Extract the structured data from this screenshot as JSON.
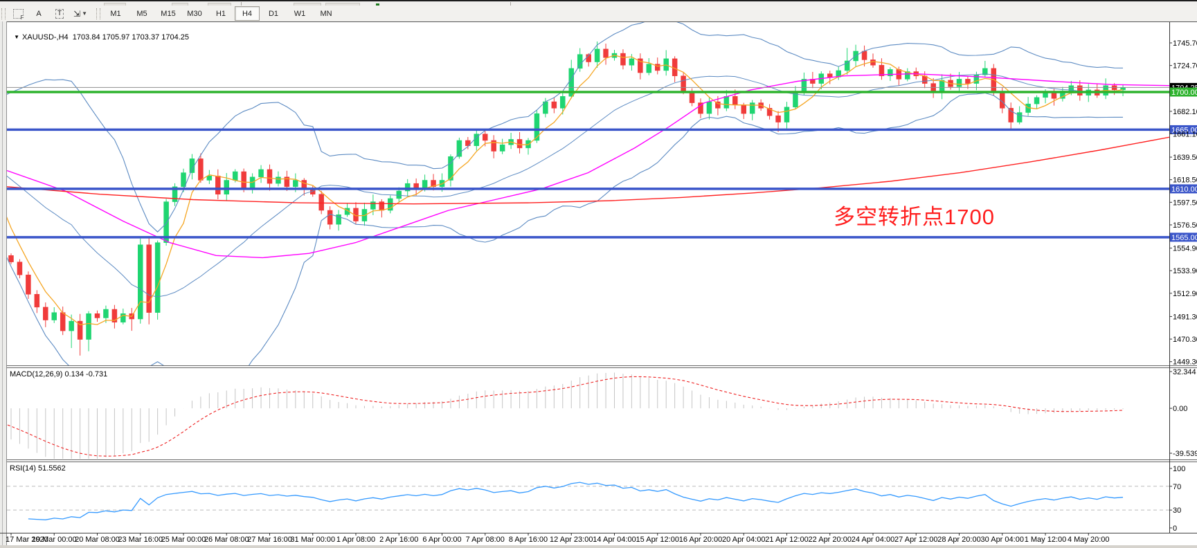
{
  "toolbar": {
    "icons": [
      {
        "name": "chart-shift-f-icon"
      },
      {
        "name": "text-a-icon",
        "glyph": "A"
      },
      {
        "name": "text-box-icon",
        "glyph": "T"
      },
      {
        "name": "cursor-arrows-icon",
        "glyph": "⇲"
      },
      {
        "name": "dropdown-caret",
        "glyph": "▼"
      }
    ],
    "timeframes": [
      "M1",
      "M5",
      "M15",
      "M30",
      "H1",
      "H4",
      "D1",
      "W1",
      "MN"
    ],
    "active_timeframe": "H4"
  },
  "chart_header": {
    "dropdown_marker": "▼",
    "symbol": "XAUUSD-,H4",
    "ohlc": "1703.84 1705.97 1703.37 1704.25"
  },
  "annotation": {
    "text": "多空转折点1700",
    "color": "#ff1e1e"
  },
  "macd_panel": {
    "title": "MACD(12,26,9) 0.134 -0.731",
    "ticks": [
      "32.344",
      "0.00",
      "-39.539"
    ]
  },
  "rsi_panel": {
    "title": "RSI(14) 51.5562",
    "ticks": [
      "100",
      "70",
      "30",
      "0"
    ],
    "dashed_levels": [
      70,
      30
    ]
  },
  "price_axis": {
    "ticks": [
      "1745.70",
      "1724.70",
      "1682.10",
      "1661.10",
      "1639.50",
      "1618.50",
      "1597.50",
      "1576.50",
      "1554.90",
      "1533.90",
      "1512.90",
      "1491.30",
      "1470.30",
      "1449.30"
    ],
    "current_price": {
      "value": 1704.25,
      "label": "1704.25",
      "line_color": "#8f8f8f",
      "label_bg": "#000000"
    },
    "levels": [
      {
        "price": 1700.0,
        "label": "1700.00",
        "color": "#2eb32e"
      },
      {
        "price": 1665.0,
        "label": "1665.00",
        "color": "#3a55c9"
      },
      {
        "price": 1610.0,
        "label": "1610.00",
        "color": "#3a55c9"
      },
      {
        "price": 1565.0,
        "label": "1565.00",
        "color": "#3a55c9"
      }
    ]
  },
  "chart_data": {
    "type": "candlestick",
    "symbol": "XAUUSD",
    "timeframe": "H4",
    "title": "XAUUSD-,H4",
    "ohlc_display": {
      "open": 1703.84,
      "high": 1705.97,
      "low": 1703.37,
      "close": 1704.25
    },
    "ylim": [
      1445.9,
      1765.0
    ],
    "x_labels": [
      "17 Mar 2020",
      "19 Mar 00:00",
      "20 Mar 08:00",
      "23 Mar 16:00",
      "25 Mar 00:00",
      "26 Mar 08:00",
      "27 Mar 16:00",
      "31 Mar 00:00",
      "1 Apr 08:00",
      "2 Apr 16:00",
      "6 Apr 00:00",
      "7 Apr 08:00",
      "8 Apr 16:00",
      "12 Apr 23:00",
      "14 Apr 04:00",
      "15 Apr 12:00",
      "16 Apr 20:00",
      "20 Apr 04:00",
      "21 Apr 12:00",
      "22 Apr 20:00",
      "24 Apr 04:00",
      "27 Apr 12:00",
      "28 Apr 20:00",
      "30 Apr 04:00",
      "1 May 12:00",
      "4 May 20:00"
    ],
    "candles_per_label": 5,
    "first_open": 1548,
    "pre_closes": [
      1673,
      1660,
      1648,
      1635,
      1620,
      1645,
      1655,
      1640,
      1610,
      1590,
      1570,
      1556
    ],
    "closes": [
      1542,
      1530,
      1512,
      1500,
      1488,
      1495,
      1478,
      1487,
      1470,
      1494,
      1490,
      1498,
      1486,
      1494,
      1489,
      1558,
      1495,
      1560,
      1598,
      1612,
      1625,
      1638,
      1618,
      1622,
      1605,
      1618,
      1626,
      1610,
      1621,
      1628,
      1615,
      1621,
      1612,
      1618,
      1610,
      1605,
      1590,
      1577,
      1586,
      1592,
      1580,
      1591,
      1598,
      1590,
      1601,
      1608,
      1615,
      1610,
      1618,
      1612,
      1618,
      1640,
      1655,
      1650,
      1661,
      1655,
      1645,
      1651,
      1656,
      1648,
      1655,
      1680,
      1691,
      1685,
      1696,
      1722,
      1735,
      1728,
      1740,
      1732,
      1736,
      1725,
      1731,
      1718,
      1726,
      1720,
      1731,
      1715,
      1700,
      1690,
      1680,
      1691,
      1685,
      1696,
      1688,
      1680,
      1690,
      1685,
      1678,
      1672,
      1686,
      1700,
      1712,
      1708,
      1717,
      1714,
      1720,
      1729,
      1738,
      1730,
      1725,
      1715,
      1721,
      1712,
      1719,
      1715,
      1708,
      1700,
      1711,
      1705,
      1712,
      1708,
      1716,
      1722,
      1700,
      1685,
      1672,
      1681,
      1689,
      1695,
      1700,
      1694,
      1701,
      1706,
      1697,
      1702,
      1697,
      1706,
      1702,
      1704.25
    ],
    "wick_overrides": {
      "7": {
        "low": 1462
      },
      "8": {
        "low": 1455
      },
      "9": {
        "low": 1459
      },
      "14": {
        "low": 1478
      },
      "16": {
        "low": 1484
      },
      "65": {
        "high": 1730
      },
      "67": {
        "high": 1736
      },
      "68": {
        "high": 1747
      },
      "69": {
        "high": 1745
      },
      "76": {
        "high": 1739
      },
      "89": {
        "low": 1663
      },
      "97": {
        "high": 1741
      },
      "98": {
        "high": 1744
      },
      "113": {
        "high": 1729
      },
      "116": {
        "low": 1666
      }
    },
    "indicators": {
      "bollinger": {
        "window": 20,
        "k": 2,
        "color": "#5b8ac2"
      },
      "ma_fast": {
        "window": 5,
        "color": "#f5a623"
      },
      "ma_mid_points": [
        [
          0.0,
          1627
        ],
        [
          0.05,
          1608
        ],
        [
          0.1,
          1580
        ],
        [
          0.14,
          1560
        ],
        [
          0.18,
          1548
        ],
        [
          0.22,
          1546
        ],
        [
          0.26,
          1550
        ],
        [
          0.3,
          1560
        ],
        [
          0.34,
          1575
        ],
        [
          0.38,
          1590
        ],
        [
          0.42,
          1600
        ],
        [
          0.46,
          1610
        ],
        [
          0.5,
          1625
        ],
        [
          0.54,
          1648
        ],
        [
          0.57,
          1668
        ],
        [
          0.6,
          1690
        ],
        [
          0.64,
          1702
        ],
        [
          0.68,
          1710
        ],
        [
          0.72,
          1715
        ],
        [
          0.78,
          1717
        ],
        [
          0.84,
          1714
        ],
        [
          0.9,
          1710
        ],
        [
          0.95,
          1707
        ],
        [
          1.0,
          1706
        ]
      ],
      "ma_mid_color": "#ff00ff",
      "ma_slow_points": [
        [
          0.0,
          1612
        ],
        [
          0.08,
          1605
        ],
        [
          0.16,
          1600
        ],
        [
          0.25,
          1597
        ],
        [
          0.35,
          1596
        ],
        [
          0.45,
          1597
        ],
        [
          0.52,
          1599
        ],
        [
          0.58,
          1602
        ],
        [
          0.64,
          1606
        ],
        [
          0.7,
          1611
        ],
        [
          0.76,
          1617
        ],
        [
          0.82,
          1625
        ],
        [
          0.88,
          1635
        ],
        [
          0.94,
          1646
        ],
        [
          1.0,
          1658
        ]
      ],
      "ma_slow_color": "#ff2020",
      "macd": {
        "ylim": [
          -45.0,
          36.0
        ],
        "hist_color": "#c4c4c4",
        "signal_color": "#ee2222",
        "display_main": 0.134,
        "display_signal": -0.731
      },
      "rsi": {
        "ylim": [
          -10.5,
          111.6
        ],
        "color": "#3399ff",
        "display_value": 51.5562
      }
    },
    "colors": {
      "up": "#1fd571",
      "down": "#f03b3b",
      "background": "#ffffff"
    }
  },
  "date_axis_labels": [
    "17 Mar 2020",
    "19 Mar 00:00",
    "20 Mar 08:00",
    "23 Mar 16:00",
    "25 Mar 00:00",
    "26 Mar 08:00",
    "27 Mar 16:00",
    "31 Mar 00:00",
    "1 Apr 08:00",
    "2 Apr 16:00",
    "6 Apr 00:00",
    "7 Apr 08:00",
    "8 Apr 16:00",
    "12 Apr 23:00",
    "14 Apr 04:00",
    "15 Apr 12:00",
    "16 Apr 20:00",
    "20 Apr 04:00",
    "21 Apr 12:00",
    "22 Apr 20:00",
    "24 Apr 04:00",
    "27 Apr 12:00",
    "28 Apr 20:00",
    "30 Apr 04:00",
    "1 May 12:00",
    "4 May 20:00"
  ]
}
